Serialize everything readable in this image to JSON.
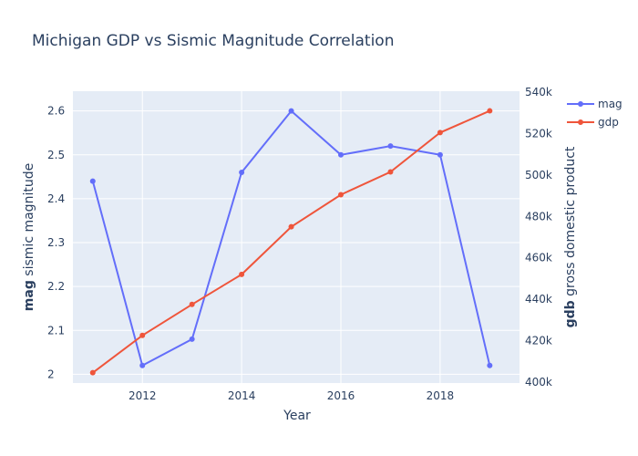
{
  "chart_data": {
    "type": "line",
    "title": "Michigan GDP vs Sismic Magnitude Correlation",
    "xlabel": "Year",
    "ylabel": {
      "bold": "mag",
      "rest": " sismic magnitude"
    },
    "y2label": {
      "bold": "gdb",
      "rest": " gross domestic product"
    },
    "x": [
      2011,
      2012,
      2013,
      2014,
      2015,
      2016,
      2017,
      2018,
      2019
    ],
    "xlim": [
      2010.6,
      2019.6
    ],
    "ylim": [
      1.98,
      2.645
    ],
    "y2lim": [
      399500,
      540500
    ],
    "x_ticks": [
      2012,
      2014,
      2016,
      2018
    ],
    "x_tick_labels": [
      "2012",
      "2014",
      "2016",
      "2018"
    ],
    "y_ticks": [
      2,
      2.1,
      2.2,
      2.3,
      2.4,
      2.5,
      2.6
    ],
    "y_tick_labels": [
      "2",
      "2.1",
      "2.2",
      "2.3",
      "2.4",
      "2.5",
      "2.6"
    ],
    "y2_ticks": [
      400000,
      420000,
      440000,
      460000,
      480000,
      500000,
      520000,
      540000
    ],
    "y2_tick_labels": [
      "400k",
      "420k",
      "440k",
      "460k",
      "480k",
      "500k",
      "520k",
      "540k"
    ],
    "grid": true,
    "legend_position": "top-right",
    "series": [
      {
        "name": "mag",
        "axis": "y",
        "color": "#636efa",
        "values": [
          2.44,
          2.02,
          2.08,
          2.46,
          2.6,
          2.5,
          2.52,
          2.5,
          2.02
        ]
      },
      {
        "name": "gdp",
        "axis": "y2",
        "color": "#ef553b",
        "values": [
          404500,
          422500,
          437500,
          452000,
          475000,
          490500,
          501500,
          520500,
          531000
        ]
      }
    ]
  }
}
